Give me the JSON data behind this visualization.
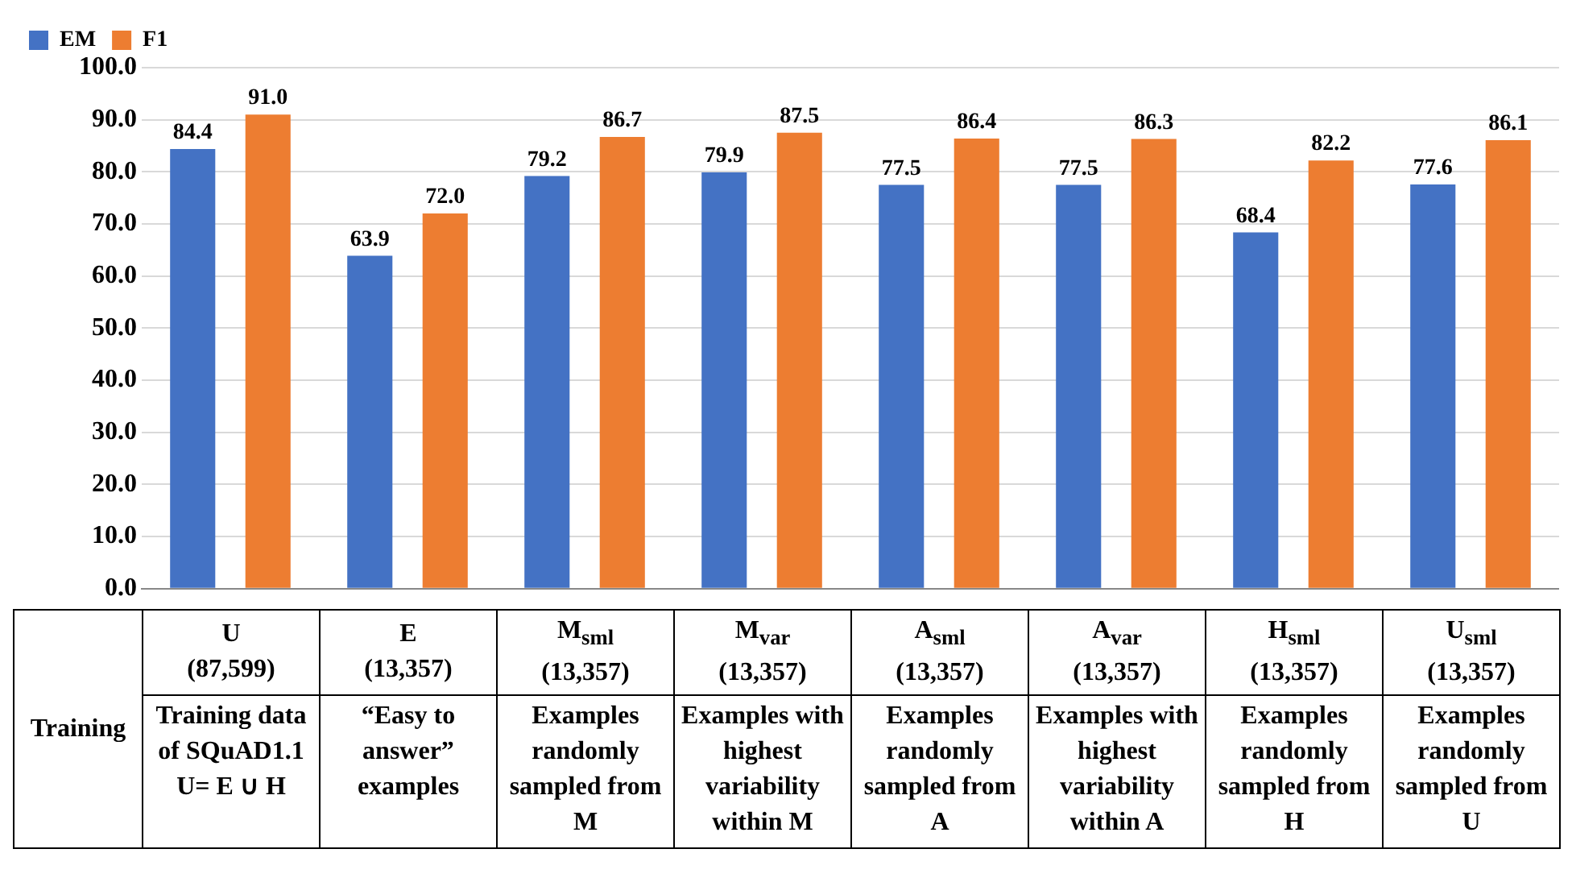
{
  "chart_data": {
    "type": "bar",
    "categories": [
      "U\n(87,599)\nTraining data of SQuAD1.1 U= E ∪ H",
      "E\n(13,357)\n“Easy to answer” examples",
      "M$_{sml}$\n(13,357)\nExamples randomly sampled from M",
      "M$_{var}$\n(13,357)\nExamples with highest variability within M",
      "A$_{sml}$\n(13,357)\nExamples randomly sampled from A",
      "A$_{var}$\n(13,357)\nExamples with highest variability within A",
      "H$_{sml}$\n(13,357)\nExamples randomly sampled from H",
      "U$_{sml}$\n(13,357)\nExamples randomly sampled from U"
    ],
    "xlabel": "Training",
    "series": [
      {
        "name": "EM",
        "color": "#4472c4",
        "values": [
          84.4,
          63.9,
          79.2,
          79.9,
          77.5,
          77.5,
          68.4,
          77.6
        ],
        "value_labels": [
          "84.4",
          "63.9",
          "79.2",
          "79.9",
          "77.5",
          "77.5",
          "68.4",
          "77.6"
        ]
      },
      {
        "name": "F1",
        "color": "#ed7d31",
        "values": [
          91.0,
          72.0,
          86.7,
          87.5,
          86.4,
          86.3,
          82.2,
          86.1
        ],
        "value_labels": [
          "91.0",
          "72.0",
          "86.7",
          "87.5",
          "86.4",
          "86.3",
          "82.2",
          "86.1"
        ]
      }
    ],
    "ylim": [
      0,
      100
    ],
    "yticks": [
      {
        "value": 0,
        "label": "0.0"
      },
      {
        "value": 10,
        "label": "10.0"
      },
      {
        "value": 20,
        "label": "20.0"
      },
      {
        "value": 30,
        "label": "30.0"
      },
      {
        "value": 40,
        "label": "40.0"
      },
      {
        "value": 50,
        "label": "50.0"
      },
      {
        "value": 60,
        "label": "60.0"
      },
      {
        "value": 70,
        "label": "70.0"
      },
      {
        "value": 80,
        "label": "80.0"
      },
      {
        "value": 90,
        "label": "90.0"
      },
      {
        "value": 100,
        "label": "100.0"
      }
    ],
    "grid": "y",
    "legend": "top left"
  }
}
